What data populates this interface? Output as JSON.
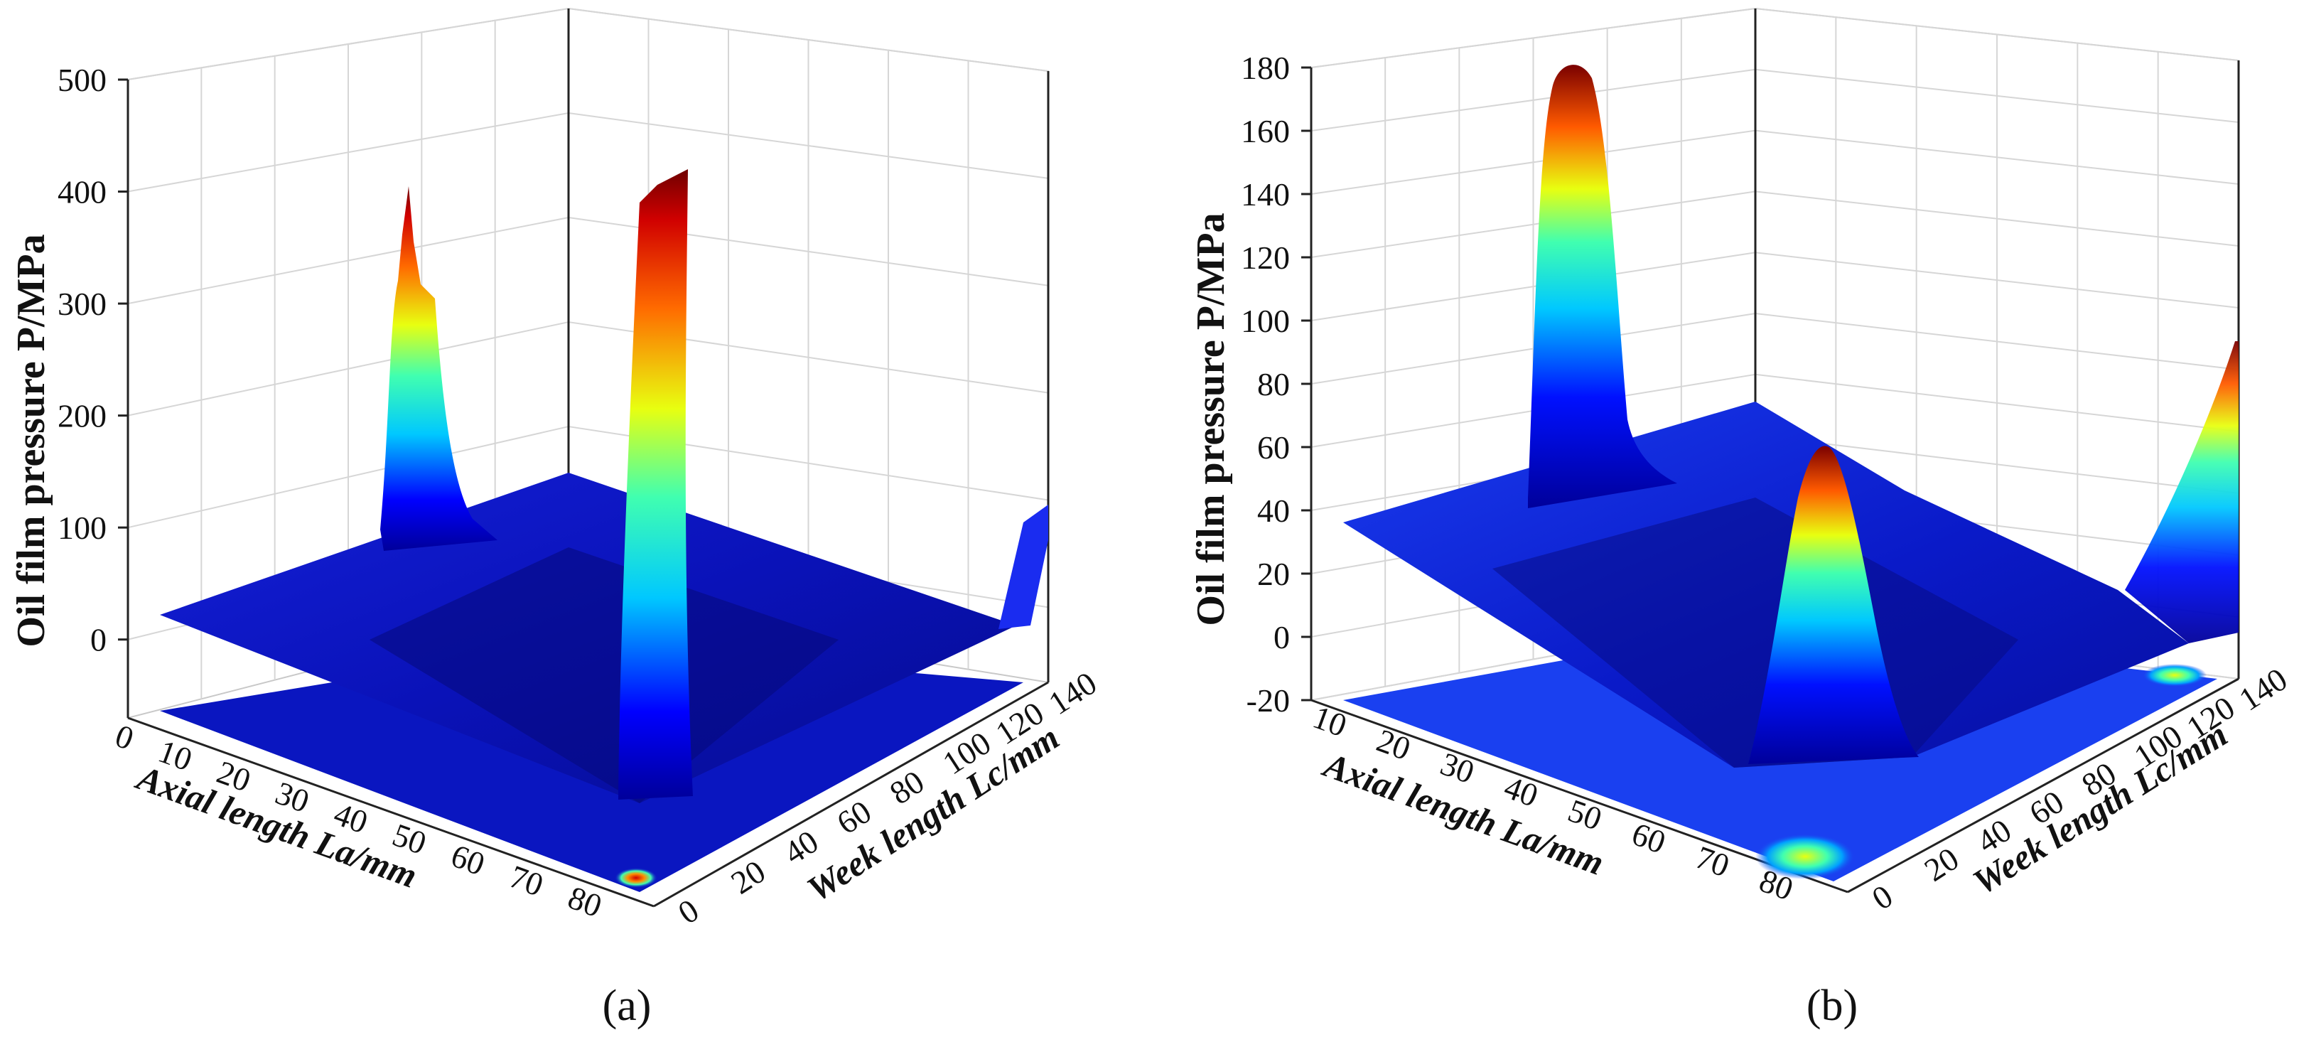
{
  "chart_data": [
    {
      "type": "surface3d",
      "caption": "(a)",
      "zlabel": "Oil film pressure  P/MPa",
      "xlabel": "Axial length La/mm",
      "ylabel": "Week length Lc/mm",
      "x_ticks": [
        "0",
        "10",
        "20",
        "30",
        "40",
        "50",
        "60",
        "70",
        "80"
      ],
      "y_ticks": [
        "0",
        "20",
        "40",
        "60",
        "80",
        "100",
        "120",
        "140"
      ],
      "z_ticks": [
        "0",
        "100",
        "200",
        "300",
        "400",
        "500"
      ],
      "xlim": [
        0,
        85
      ],
      "ylim": [
        0,
        145
      ],
      "zlim": [
        -70,
        500
      ],
      "grid": true,
      "colormap": "jet",
      "floor_projection": true,
      "base_pressure": 28,
      "peaks": [
        {
          "axial": 10,
          "week": 100,
          "pressure": 410
        },
        {
          "axial": 80,
          "week": 130,
          "pressure": 465
        },
        {
          "axial": 85,
          "week": 5,
          "pressure": 150
        }
      ]
    },
    {
      "type": "surface3d",
      "caption": "(b)",
      "zlabel": "Oil film pressure  P/MPa",
      "xlabel": "Axial length La/mm",
      "ylabel": "Week length Lc/mm",
      "x_ticks": [
        "10",
        "20",
        "30",
        "40",
        "50",
        "60",
        "70",
        "80"
      ],
      "y_ticks": [
        "0",
        "20",
        "40",
        "60",
        "80",
        "100",
        "120",
        "140"
      ],
      "z_ticks": [
        "-20",
        "0",
        "20",
        "40",
        "60",
        "80",
        "100",
        "120",
        "140",
        "160",
        "180"
      ],
      "xlim": [
        5,
        85
      ],
      "ylim": [
        0,
        145
      ],
      "zlim": [
        -20,
        180
      ],
      "grid": true,
      "colormap": "jet",
      "floor_projection": true,
      "base_pressure": 40,
      "peaks": [
        {
          "axial": 10,
          "week": 90,
          "pressure": 185
        },
        {
          "axial": 80,
          "week": 100,
          "pressure": 105
        },
        {
          "axial": 85,
          "week": 0,
          "pressure": 95
        }
      ]
    }
  ]
}
